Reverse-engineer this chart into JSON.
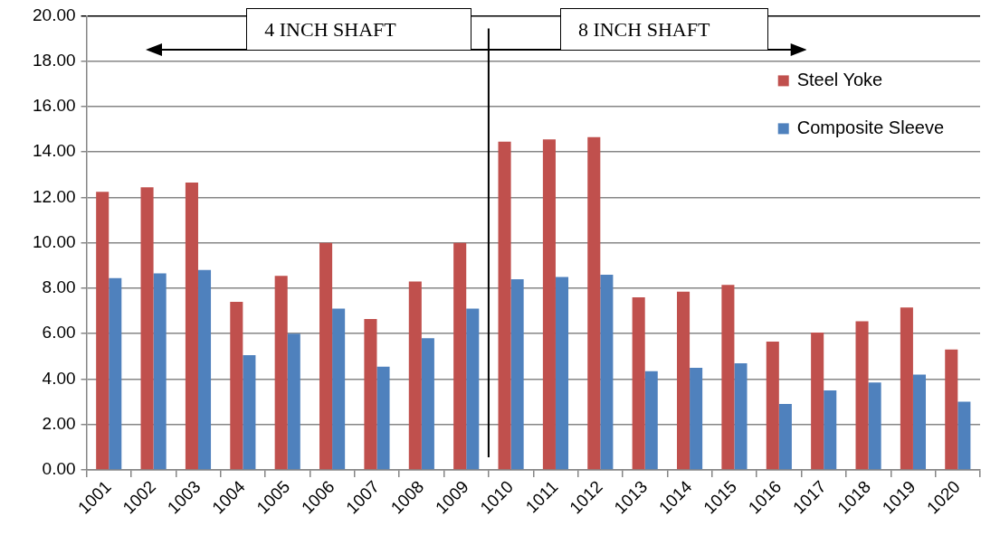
{
  "chart_data": {
    "type": "bar",
    "x": [
      1001,
      1002,
      1003,
      1004,
      1005,
      1006,
      1007,
      1008,
      1009,
      1010,
      1011,
      1012,
      1013,
      1014,
      1015,
      1016,
      1017,
      1018,
      1019,
      1020
    ],
    "series": [
      {
        "name": "Steel Yoke",
        "color": "#c0504d",
        "values": [
          12.25,
          12.45,
          12.65,
          7.4,
          8.55,
          10.0,
          6.65,
          8.3,
          10.0,
          14.45,
          14.55,
          14.65,
          7.6,
          7.85,
          8.15,
          5.65,
          6.05,
          6.55,
          7.15,
          5.3
        ]
      },
      {
        "name": "Composite Sleeve",
        "color": "#4f81bd",
        "values": [
          8.45,
          8.65,
          8.8,
          5.05,
          6.0,
          7.1,
          4.55,
          5.8,
          7.1,
          8.4,
          8.5,
          8.6,
          4.35,
          4.5,
          4.7,
          2.9,
          3.5,
          3.85,
          4.2,
          3.0
        ]
      }
    ],
    "xlim": [
      1000.5,
      1020.5
    ],
    "xticks": [
      1001,
      1002,
      1003,
      1004,
      1005,
      1006,
      1007,
      1008,
      1009,
      1010,
      1011,
      1012,
      1013,
      1014,
      1015,
      1016,
      1017,
      1018,
      1019,
      1020
    ],
    "ylim": [
      0,
      20
    ],
    "yticks": [
      {
        "value": 0,
        "label": "0.00"
      },
      {
        "value": 2,
        "label": "2.00"
      },
      {
        "value": 4,
        "label": "4.00"
      },
      {
        "value": 6,
        "label": "6.00"
      },
      {
        "value": 8,
        "label": "8.00"
      },
      {
        "value": 10,
        "label": "10.00"
      },
      {
        "value": 12,
        "label": "12.00"
      },
      {
        "value": 14,
        "label": "14.00"
      },
      {
        "value": 16,
        "label": "16.00"
      },
      {
        "value": 18,
        "label": "18.00"
      },
      {
        "value": 20,
        "label": "20.00"
      }
    ],
    "grid": "y",
    "legend": "top right",
    "ref_lines": [
      {
        "axis": "x",
        "value": 1009.5,
        "color": "#000000"
      }
    ],
    "annotations": [
      "4 INCH SHAFT",
      "8 INCH SHAFT"
    ]
  }
}
